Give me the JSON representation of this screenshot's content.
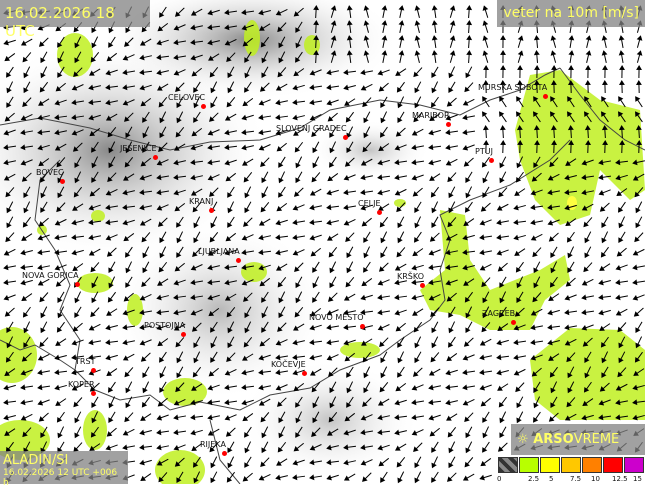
{
  "header": {
    "datetime": "16.02.2026 18 UTC",
    "variable": "veter na 10m [m/s]"
  },
  "model": {
    "name": "ALADIN/SI",
    "run": "16.02.2026 12 UTC +006 h"
  },
  "logo": {
    "text_bold": "ARSO",
    "text_light": "VREME"
  },
  "cities": [
    {
      "name": "CELOVEC"
    },
    {
      "name": "SLOVENJ GRADEC"
    },
    {
      "name": "MARIBOR"
    },
    {
      "name": "MURSKA SOBOTA"
    },
    {
      "name": "JESENICE"
    },
    {
      "name": "PTUJ"
    },
    {
      "name": "BOVEC"
    },
    {
      "name": "KRANJ"
    },
    {
      "name": "CELJE"
    },
    {
      "name": "LJUBLJANA"
    },
    {
      "name": "NOVA GORICA"
    },
    {
      "name": "KRŠKO"
    },
    {
      "name": "ZAGREB"
    },
    {
      "name": "NOVO MESTO"
    },
    {
      "name": "POSTOJNA"
    },
    {
      "name": "TRST"
    },
    {
      "name": "KOČEVJE"
    },
    {
      "name": "KOPER"
    },
    {
      "name": "RIJEKA"
    }
  ],
  "legend": {
    "colors": [
      "#555555",
      "#b8ff00",
      "#ffff00",
      "#ffc800",
      "#ff8000",
      "#ff0000",
      "#cc00cc"
    ],
    "labels": [
      "0",
      "2.5",
      "5",
      "7.5",
      "10",
      "12.5",
      "15"
    ]
  }
}
